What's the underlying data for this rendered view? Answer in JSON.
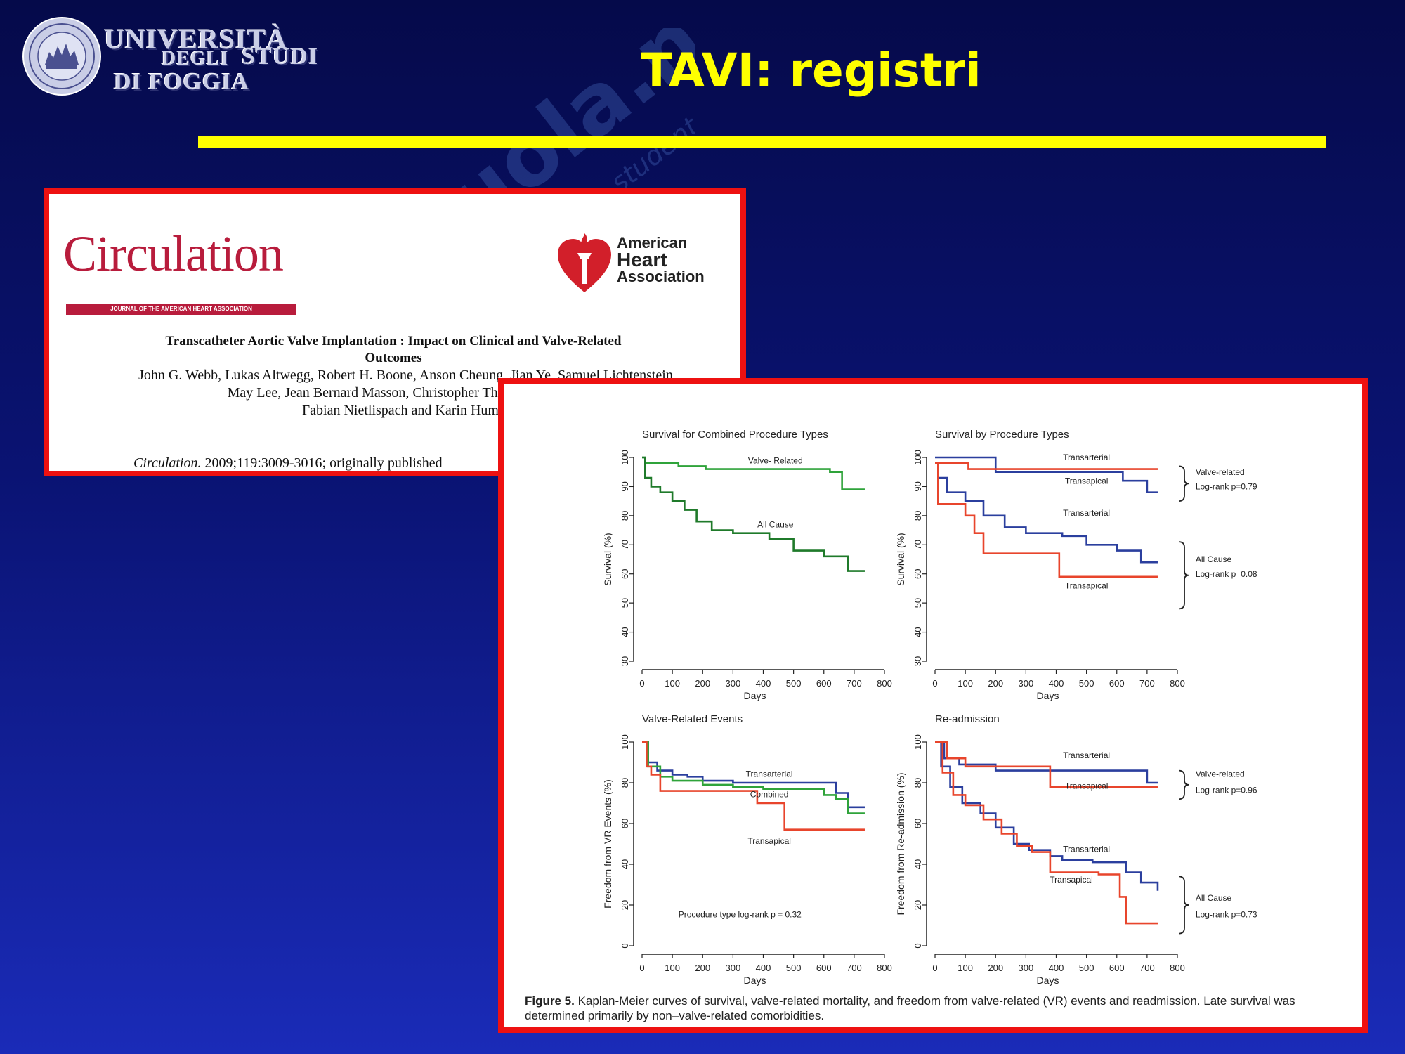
{
  "university": {
    "line1": "UNIVERSITÀ",
    "line2": "DEGLI",
    "line3": "STUDI",
    "line4": "DI FOGGIA"
  },
  "title": "TAVI: registri",
  "watermark": {
    "brand": "Skuola.net",
    "tagline": "il paradiso dello studente"
  },
  "paper": {
    "journal": "Circulation",
    "journal_sub": "JOURNAL OF THE AMERICAN HEART ASSOCIATION",
    "aha_line1": "American",
    "aha_line2": "Heart",
    "aha_line3": "Association",
    "title_line1": "Transcatheter Aortic Valve Implantation : Impact on Clinical and Valve-Related",
    "title_line2": "Outcomes",
    "authors": "John G. Webb, Lukas Altwegg, Robert H. Boone, Anson Cheung, Jian Ye, Samuel Lichtenstein,\nMay Lee, Jean Bernard Masson, Christopher Thompson, Robert\nFabian Nietlispach and Karin Humph",
    "citation_journal": "Circulation.",
    "citation_rest": " 2009;119:3009-3016; originally published"
  },
  "figure": {
    "caption_label": "Figure 5.",
    "caption_text": " Kaplan-Meier curves of survival, valve-related mortality, and freedom from valve-related (VR) events and readmission. Late survival was determined primarily by non–valve-related comorbidities."
  },
  "colors": {
    "transarterial": "#2b3f9e",
    "transapical": "#e8452c",
    "combined_green": "#2fa33a",
    "dark_green": "#1f7a2a"
  },
  "chart_data": [
    {
      "type": "line",
      "title": "Survival for Combined Procedure Types",
      "xlabel": "Days",
      "ylabel": "Survival (%)",
      "xlim": [
        0,
        800
      ],
      "ylim": [
        30,
        100
      ],
      "xticks": [
        0,
        100,
        200,
        300,
        400,
        500,
        600,
        700,
        800
      ],
      "yticks": [
        30,
        40,
        50,
        60,
        70,
        80,
        90,
        100
      ],
      "series": [
        {
          "name": "Valve- Related",
          "color": "#2fa33a",
          "x": [
            0,
            10,
            120,
            210,
            300,
            620,
            660,
            735
          ],
          "y": [
            100,
            98,
            97,
            96,
            96,
            95,
            89,
            89
          ]
        },
        {
          "name": "All Cause",
          "color": "#1f7a2a",
          "x": [
            0,
            10,
            30,
            60,
            100,
            140,
            180,
            230,
            300,
            420,
            500,
            600,
            680,
            735
          ],
          "y": [
            100,
            93,
            90,
            88,
            85,
            82,
            78,
            75,
            74,
            72,
            68,
            66,
            61,
            61
          ]
        }
      ],
      "labels": [
        {
          "text": "Valve- Related",
          "x": 440,
          "y": 98
        },
        {
          "text": "All Cause",
          "x": 440,
          "y": 76
        }
      ]
    },
    {
      "type": "line",
      "title": "Survival by Procedure Types",
      "xlabel": "Days",
      "ylabel": "Survival (%)",
      "xlim": [
        0,
        800
      ],
      "ylim": [
        30,
        100
      ],
      "xticks": [
        0,
        100,
        200,
        300,
        400,
        500,
        600,
        700,
        800
      ],
      "yticks": [
        30,
        40,
        50,
        60,
        70,
        80,
        90,
        100
      ],
      "series": [
        {
          "name": "Transarterial (Valve-related)",
          "color": "#2b3f9e",
          "x": [
            0,
            200,
            620,
            700,
            735
          ],
          "y": [
            100,
            95,
            92,
            88,
            88
          ]
        },
        {
          "name": "Transapical (Valve-related)",
          "color": "#e8452c",
          "x": [
            0,
            110,
            735
          ],
          "y": [
            98,
            96,
            96
          ]
        },
        {
          "name": "Transarterial (All Cause)",
          "color": "#2b3f9e",
          "x": [
            0,
            10,
            40,
            100,
            160,
            230,
            300,
            420,
            500,
            600,
            680,
            735
          ],
          "y": [
            98,
            93,
            88,
            85,
            80,
            76,
            74,
            73,
            70,
            68,
            64,
            64
          ]
        },
        {
          "name": "Transapical (All Cause)",
          "color": "#e8452c",
          "x": [
            0,
            10,
            100,
            130,
            160,
            410,
            735
          ],
          "y": [
            98,
            84,
            80,
            74,
            67,
            59,
            59
          ]
        }
      ],
      "labels": [
        {
          "text": "Transarterial",
          "x": 500,
          "y": 99
        },
        {
          "text": "Transapical",
          "x": 500,
          "y": 91
        },
        {
          "text": "Transarterial",
          "x": 500,
          "y": 80
        },
        {
          "text": "Transapical",
          "x": 500,
          "y": 55
        },
        {
          "text": "Valve-related",
          "x": 860,
          "y": 94
        },
        {
          "text": "Log-rank p=0.79",
          "x": 860,
          "y": 89
        },
        {
          "text": "All Cause",
          "x": 860,
          "y": 64
        },
        {
          "text": "Log-rank p=0.08",
          "x": 860,
          "y": 59
        }
      ],
      "braces": [
        {
          "y1": 97,
          "y2": 85
        },
        {
          "y1": 71,
          "y2": 48
        }
      ]
    },
    {
      "type": "line",
      "title": "Valve-Related Events",
      "xlabel": "Days",
      "ylabel": "Freedom from VR Events (%)",
      "xlim": [
        0,
        800
      ],
      "ylim": [
        0,
        100
      ],
      "xticks": [
        0,
        100,
        200,
        300,
        400,
        500,
        600,
        700,
        800
      ],
      "yticks": [
        0,
        20,
        40,
        60,
        80,
        100
      ],
      "series": [
        {
          "name": "Transarterial",
          "color": "#2b3f9e",
          "x": [
            0,
            20,
            50,
            100,
            150,
            200,
            300,
            400,
            600,
            640,
            680,
            735
          ],
          "y": [
            100,
            90,
            86,
            84,
            83,
            81,
            80,
            80,
            80,
            75,
            68,
            68
          ]
        },
        {
          "name": "Combined",
          "color": "#2fa33a",
          "x": [
            0,
            20,
            60,
            100,
            200,
            300,
            400,
            600,
            640,
            680,
            735
          ],
          "y": [
            100,
            88,
            83,
            81,
            79,
            78,
            77,
            74,
            72,
            65,
            65
          ]
        },
        {
          "name": "Transapical",
          "color": "#e8452c",
          "x": [
            0,
            15,
            30,
            60,
            380,
            470,
            735
          ],
          "y": [
            100,
            88,
            84,
            76,
            70,
            57,
            57
          ]
        }
      ],
      "labels": [
        {
          "text": "Transarterial",
          "x": 420,
          "y": 83
        },
        {
          "text": "Combined",
          "x": 420,
          "y": 73
        },
        {
          "text": "Transapical",
          "x": 420,
          "y": 50
        },
        {
          "text": "Procedure type log-rank p = 0.32",
          "x": 120,
          "y": 14
        }
      ]
    },
    {
      "type": "line",
      "title": "Re-admission",
      "xlabel": "Days",
      "ylabel": "Freedom from Re-admission (%)",
      "xlim": [
        0,
        800
      ],
      "ylim": [
        0,
        100
      ],
      "xticks": [
        0,
        100,
        200,
        300,
        400,
        500,
        600,
        700,
        800
      ],
      "yticks": [
        0,
        20,
        40,
        60,
        80,
        100
      ],
      "series": [
        {
          "name": "Transarterial (Valve-related)",
          "color": "#2b3f9e",
          "x": [
            0,
            30,
            80,
            200,
            420,
            700,
            735
          ],
          "y": [
            100,
            92,
            89,
            86,
            86,
            80,
            80
          ]
        },
        {
          "name": "Transapical (Valve-related)",
          "color": "#e8452c",
          "x": [
            0,
            40,
            100,
            380,
            735
          ],
          "y": [
            100,
            92,
            88,
            78,
            78
          ]
        },
        {
          "name": "Transarterial (All Cause)",
          "color": "#2b3f9e",
          "x": [
            0,
            20,
            50,
            90,
            150,
            200,
            260,
            310,
            380,
            420,
            520,
            630,
            680,
            735
          ],
          "y": [
            100,
            88,
            78,
            70,
            65,
            58,
            50,
            47,
            44,
            42,
            41,
            36,
            31,
            27
          ]
        },
        {
          "name": "Transapical (All Cause)",
          "color": "#e8452c",
          "x": [
            0,
            25,
            60,
            100,
            160,
            220,
            270,
            320,
            380,
            540,
            610,
            630,
            735
          ],
          "y": [
            100,
            85,
            74,
            69,
            62,
            55,
            49,
            46,
            36,
            35,
            24,
            11,
            11
          ]
        }
      ],
      "labels": [
        {
          "text": "Transarterial",
          "x": 500,
          "y": 92
        },
        {
          "text": "Transapical",
          "x": 500,
          "y": 77
        },
        {
          "text": "Transarterial",
          "x": 500,
          "y": 46
        },
        {
          "text": "Transapical",
          "x": 450,
          "y": 31
        },
        {
          "text": "Valve-related",
          "x": 860,
          "y": 83
        },
        {
          "text": "Log-rank p=0.96",
          "x": 860,
          "y": 75
        },
        {
          "text": "All Cause",
          "x": 860,
          "y": 22
        },
        {
          "text": "Log-rank p=0.73",
          "x": 860,
          "y": 14
        }
      ],
      "braces": [
        {
          "y1": 86,
          "y2": 72
        },
        {
          "y1": 34,
          "y2": 6
        }
      ]
    }
  ]
}
